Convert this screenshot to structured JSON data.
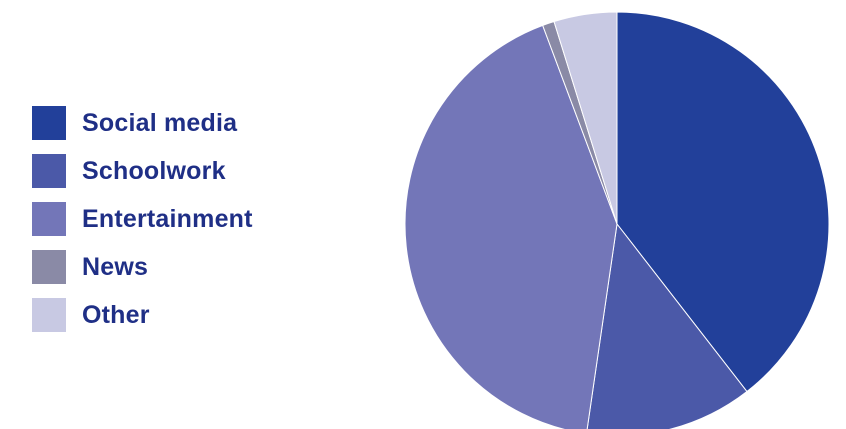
{
  "chart_data": {
    "type": "pie",
    "categories": [
      "Social media",
      "Schoolwork",
      "Entertainment",
      "News",
      "Other"
    ],
    "values": [
      39.5,
      12.8,
      42.0,
      0.9,
      4.8
    ],
    "colors": [
      "#22409a",
      "#4b59a8",
      "#7376b8",
      "#8a8aa6",
      "#c8c9e3"
    ],
    "start_angle_deg": 0,
    "direction": "clockwise",
    "legend_position": "left",
    "title": ""
  },
  "legend": {
    "items": [
      {
        "label": "Social media",
        "color": "#22409a"
      },
      {
        "label": "Schoolwork",
        "color": "#4b59a8"
      },
      {
        "label": "Entertainment",
        "color": "#7376b8"
      },
      {
        "label": "News",
        "color": "#8a8aa6"
      },
      {
        "label": "Other",
        "color": "#c8c9e3"
      }
    ]
  }
}
